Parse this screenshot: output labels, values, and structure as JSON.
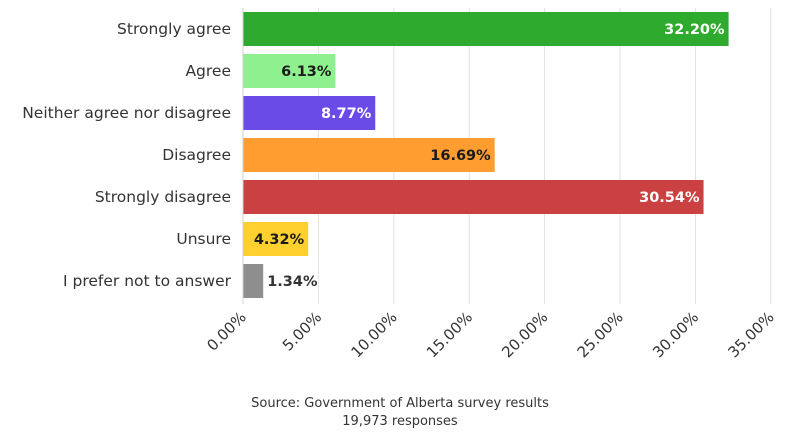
{
  "chart_data": {
    "type": "bar",
    "orientation": "horizontal",
    "categories": [
      "Strongly agree",
      "Agree",
      "Neither agree nor disagree",
      "Disagree",
      "Strongly disagree",
      "Unsure",
      "I prefer not to answer"
    ],
    "values": [
      32.2,
      6.13,
      8.77,
      16.69,
      30.54,
      4.32,
      1.34
    ],
    "value_labels": [
      "32.20%",
      "6.13%",
      "8.77%",
      "16.69%",
      "30.54%",
      "4.32%",
      "1.34%"
    ],
    "colors": [
      "#2eaa2e",
      "#8ef08e",
      "#6a4be8",
      "#ff9d30",
      "#cb4141",
      "#ffd02e",
      "#8e8e8e"
    ],
    "label_colors": [
      "#ffffff",
      "#1a1a1a",
      "#ffffff",
      "#1a1a1a",
      "#ffffff",
      "#1a1a1a",
      "#333333"
    ],
    "xticks": [
      0,
      5,
      10,
      15,
      20,
      25,
      30,
      35
    ],
    "xtick_labels": [
      "0.00%",
      "5.00%",
      "10.00%",
      "15.00%",
      "20.00%",
      "25.00%",
      "30.00%",
      "35.00%"
    ],
    "xlim": [
      0,
      35
    ],
    "grid": true,
    "xlabel": "",
    "ylabel": "",
    "title": ""
  },
  "source": {
    "line1": "Source: Government of Alberta survey results",
    "line2": "19,973 responses"
  }
}
